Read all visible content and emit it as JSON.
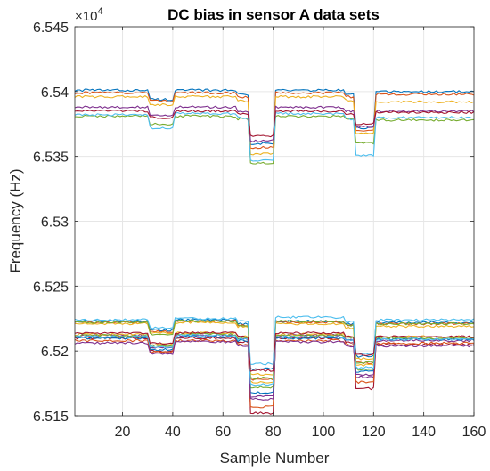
{
  "chart_data": {
    "type": "line",
    "title": "DC bias in sensor A data sets",
    "xlabel": "Sample Number",
    "ylabel": "Frequency (Hz)",
    "exponent_label": "×10",
    "exponent_power": "4",
    "xlim": [
      1,
      160
    ],
    "ylim": [
      6.515,
      6.545
    ],
    "xticks": [
      20,
      40,
      60,
      80,
      100,
      120,
      140,
      160
    ],
    "xtick_labels": [
      "20",
      "40",
      "60",
      "80",
      "100",
      "120",
      "140",
      "160"
    ],
    "yticks": [
      6.515,
      6.52,
      6.525,
      6.53,
      6.535,
      6.54,
      6.545
    ],
    "ytick_labels": [
      "6.515",
      "6.52",
      "6.525",
      "6.53",
      "6.535",
      "6.54",
      "6.545"
    ],
    "grid": true,
    "segments_x": [
      [
        1,
        30
      ],
      [
        31,
        40
      ],
      [
        41,
        65
      ],
      [
        66,
        70
      ],
      [
        71,
        80
      ],
      [
        81,
        108
      ],
      [
        109,
        112
      ],
      [
        113,
        120
      ],
      [
        121,
        160
      ]
    ],
    "series": [
      {
        "color": "#0072BD",
        "levels": [
          6.5401,
          6.5394,
          6.5401,
          6.5398,
          6.536,
          6.5401,
          6.5398,
          6.5372,
          6.54
        ]
      },
      {
        "color": "#D95319",
        "levels": [
          6.5399,
          6.5393,
          6.5399,
          6.5396,
          6.5357,
          6.5399,
          6.5396,
          6.537,
          6.5398
        ]
      },
      {
        "color": "#EDB120",
        "levels": [
          6.5396,
          6.539,
          6.5396,
          6.5393,
          6.5352,
          6.5396,
          6.5393,
          6.5368,
          6.5392
        ]
      },
      {
        "color": "#7E2F8E",
        "levels": [
          6.5388,
          6.5382,
          6.5388,
          6.5385,
          6.5362,
          6.5388,
          6.5385,
          6.5373,
          6.5385
        ]
      },
      {
        "color": "#77AC30",
        "levels": [
          6.5381,
          6.5375,
          6.5381,
          6.5379,
          6.5345,
          6.5381,
          6.5379,
          6.536,
          6.5378
        ]
      },
      {
        "color": "#4DBEEE",
        "levels": [
          6.5382,
          6.5372,
          6.5383,
          6.538,
          6.5347,
          6.5383,
          6.5379,
          6.5351,
          6.538
        ]
      },
      {
        "color": "#A2142F",
        "levels": [
          6.5385,
          6.538,
          6.5385,
          6.5383,
          6.5366,
          6.5385,
          6.5383,
          6.5375,
          6.5384
        ]
      },
      {
        "color": "#0072BD",
        "levels": [
          6.5223,
          6.5216,
          6.5224,
          6.5221,
          6.5186,
          6.5223,
          6.5221,
          6.5196,
          6.5222
        ]
      },
      {
        "color": "#D95319",
        "levels": [
          6.5222,
          6.5215,
          6.5223,
          6.522,
          6.5178,
          6.5222,
          6.522,
          6.5191,
          6.5221
        ]
      },
      {
        "color": "#EDB120",
        "levels": [
          6.5221,
          6.5214,
          6.5222,
          6.5219,
          6.5176,
          6.5221,
          6.5218,
          6.5189,
          6.5219
        ]
      },
      {
        "color": "#7E2F8E",
        "levels": [
          6.5212,
          6.5203,
          6.5212,
          6.5209,
          6.5165,
          6.5212,
          6.5209,
          6.518,
          6.5208
        ]
      },
      {
        "color": "#77AC30",
        "levels": [
          6.5222,
          6.5213,
          6.5223,
          6.522,
          6.5172,
          6.5223,
          6.522,
          6.5186,
          6.5221
        ]
      },
      {
        "color": "#4DBEEE",
        "levels": [
          6.5224,
          6.5218,
          6.5225,
          6.5223,
          6.519,
          6.5226,
          6.5223,
          6.5198,
          6.5224
        ]
      },
      {
        "color": "#A2142F",
        "levels": [
          6.521,
          6.52,
          6.521,
          6.5207,
          6.5152,
          6.521,
          6.5207,
          6.5171,
          6.5205
        ]
      },
      {
        "color": "#0072BD",
        "levels": [
          6.521,
          6.5201,
          6.5211,
          6.5208,
          6.5168,
          6.521,
          6.5208,
          6.5184,
          6.5209
        ]
      },
      {
        "color": "#D95319",
        "levels": [
          6.5208,
          6.5199,
          6.5208,
          6.5205,
          6.5157,
          6.5208,
          6.5205,
          6.5176,
          6.5206
        ]
      },
      {
        "color": "#EDB120",
        "levels": [
          6.5213,
          6.5205,
          6.5214,
          6.5211,
          6.5182,
          6.5213,
          6.5211,
          6.5194,
          6.5211
        ]
      },
      {
        "color": "#7E2F8E",
        "levels": [
          6.5206,
          6.5198,
          6.5207,
          6.5204,
          6.5163,
          6.5207,
          6.5204,
          6.5182,
          6.5204
        ]
      },
      {
        "color": "#77AC30",
        "levels": [
          6.5212,
          6.5204,
          6.5213,
          6.521,
          6.5179,
          6.5212,
          6.521,
          6.5191,
          6.521
        ]
      },
      {
        "color": "#4DBEEE",
        "levels": [
          6.5211,
          6.5203,
          6.5212,
          6.5209,
          6.5174,
          6.5211,
          6.5209,
          6.5187,
          6.5209
        ]
      },
      {
        "color": "#A2142F",
        "levels": [
          6.5214,
          6.5206,
          6.5214,
          6.5211,
          6.5185,
          6.5214,
          6.5211,
          6.5197,
          6.5211
        ]
      }
    ]
  }
}
